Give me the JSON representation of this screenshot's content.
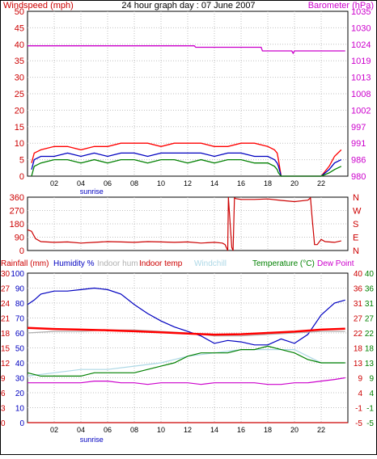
{
  "chart_data": [
    {
      "type": "line",
      "title": "24 hour graph day : 07 June 2007",
      "ylabel": "Windspeed (mph)",
      "y2label": "Barometer (hPa)",
      "ylim": [
        0,
        50
      ],
      "yticks": [
        "0",
        "5",
        "10",
        "15",
        "20",
        "25",
        "30",
        "35",
        "40",
        "45",
        "50"
      ],
      "y2lim": [
        980,
        1035
      ],
      "y2ticks": [
        "980",
        "986",
        "991",
        "997",
        "1002",
        "1008",
        "1013",
        "1019",
        "1024",
        "1030",
        "1035"
      ],
      "xlim": [
        0,
        24
      ],
      "xticks": [
        "02",
        "04",
        "06",
        "08",
        "10",
        "12",
        "14",
        "16",
        "18",
        "20",
        "22"
      ],
      "x_annotation": "sunrise",
      "x_annotation_at": 4.8,
      "grid": true,
      "colors": {
        "gust": "#ff0000",
        "average": "#0000c0",
        "wind": "#008000",
        "barometer": "#cc00cc",
        "text_left": "#cc0000",
        "text_right": "#cc00cc"
      },
      "series": [
        {
          "name": "",
          "axis": "left",
          "color": "#ff0000",
          "x": [
            0.3,
            0.5,
            1.0,
            2.0,
            3.0,
            4.0,
            5.0,
            6.0,
            7.0,
            8.0,
            9.0,
            10.0,
            11.0,
            12.0,
            13.0,
            14.0,
            15.0,
            16.0,
            17.0,
            18.0,
            18.5,
            18.7,
            18.8,
            19.0,
            20.0,
            21.0,
            22.0,
            22.6,
            23.0,
            23.5
          ],
          "y": [
            4,
            7,
            8,
            9,
            9,
            8,
            9,
            9,
            10,
            10,
            10,
            9,
            10,
            10,
            10,
            9,
            9,
            10,
            10,
            9,
            8,
            7,
            5,
            0,
            0,
            0,
            0,
            3,
            6,
            8
          ]
        },
        {
          "name": "",
          "axis": "left",
          "color": "#0000c0",
          "x": [
            0.3,
            0.5,
            1.0,
            2.0,
            3.0,
            4.0,
            5.0,
            6.0,
            7.0,
            8.0,
            9.0,
            10.0,
            11.0,
            12.0,
            13.0,
            14.0,
            15.0,
            16.0,
            17.0,
            18.0,
            18.5,
            18.7,
            18.8,
            19.0,
            20.0,
            21.0,
            22.0,
            22.6,
            23.0,
            23.5
          ],
          "y": [
            2,
            5,
            6,
            6,
            7,
            6,
            7,
            6,
            7,
            7,
            6,
            7,
            7,
            7,
            7,
            6,
            7,
            7,
            6,
            6,
            5,
            4,
            3,
            0,
            0,
            0,
            0,
            2,
            4,
            5
          ]
        },
        {
          "name": "",
          "axis": "left",
          "color": "#008000",
          "x": [
            0.3,
            0.5,
            1.0,
            2.0,
            3.0,
            4.0,
            5.0,
            6.0,
            7.0,
            8.0,
            9.0,
            10.0,
            11.0,
            12.0,
            13.0,
            14.0,
            15.0,
            16.0,
            17.0,
            18.0,
            18.5,
            18.7,
            18.8,
            19.0,
            20.0,
            21.0,
            22.0,
            22.6,
            23.0,
            23.5
          ],
          "y": [
            0,
            3,
            4,
            5,
            5,
            4,
            5,
            4,
            5,
            5,
            4,
            5,
            5,
            4,
            5,
            4,
            5,
            5,
            4,
            4,
            3,
            2,
            1,
            0,
            0,
            0,
            0,
            1,
            2,
            3
          ]
        },
        {
          "name": "",
          "axis": "right",
          "color": "#cc00cc",
          "x": [
            0.0,
            12.5,
            12.6,
            17.5,
            17.6,
            19.8,
            19.9,
            20.0,
            20.1,
            23.8
          ],
          "y": [
            1023.5,
            1023.5,
            1023.0,
            1023.0,
            1021.8,
            1021.8,
            1021.0,
            1021.8,
            1021.8,
            1021.8
          ]
        }
      ]
    },
    {
      "type": "line",
      "ylabel": "",
      "ylim": [
        0,
        360
      ],
      "yticks": [
        "0",
        "90",
        "180",
        "270",
        "360"
      ],
      "y2ticks": [
        "N",
        "E",
        "S",
        "W",
        "N"
      ],
      "xlim": [
        0,
        24
      ],
      "grid": true,
      "colors": {
        "direction": "#cc0000",
        "text_left": "#cc0000"
      },
      "series": [
        {
          "name": "",
          "color": "#cc0000",
          "x": [
            0.0,
            0.3,
            0.6,
            1.0,
            2.0,
            3.0,
            4.0,
            5.0,
            6.0,
            7.0,
            8.0,
            9.0,
            10.0,
            11.0,
            12.0,
            13.0,
            14.0,
            14.6,
            14.8,
            15.0,
            15.05,
            15.3,
            15.4,
            15.5,
            15.6,
            16.0,
            17.0,
            18.0,
            19.0,
            20.0,
            21.0,
            21.2,
            21.3,
            21.5,
            21.7,
            22.0,
            22.3,
            23.0,
            23.5
          ],
          "y": [
            140,
            130,
            80,
            60,
            55,
            58,
            50,
            55,
            60,
            58,
            55,
            60,
            58,
            55,
            58,
            50,
            55,
            50,
            40,
            0,
            360,
            20,
            0,
            355,
            350,
            345,
            345,
            348,
            338,
            330,
            340,
            355,
            240,
            40,
            40,
            75,
            60,
            55,
            65
          ]
        }
      ]
    },
    {
      "type": "line",
      "left_labels": [
        "Rainfall (mm)",
        "Humidity %",
        "Indoor hum",
        "Indoor temp",
        "Windchill"
      ],
      "right_labels": [
        "Temperature (°C)",
        "Dew Point"
      ],
      "ylim": [
        0,
        100
      ],
      "yticks_left1": [
        "0",
        "3",
        "6",
        "9",
        "12",
        "15",
        "18",
        "21",
        "24",
        "27",
        "30"
      ],
      "yticks_left2": [
        "0",
        "10",
        "20",
        "30",
        "40",
        "50",
        "60",
        "70",
        "80",
        "90",
        "100"
      ],
      "yticks_right1": [
        "-5",
        "-1",
        "4",
        "9",
        "13",
        "18",
        "22",
        "27",
        "31",
        "36",
        "40"
      ],
      "yticks_right2": [
        "-5",
        "-1",
        "4",
        "9",
        "13",
        "18",
        "22",
        "27",
        "31",
        "36",
        "40"
      ],
      "y2lim": [
        -5,
        40
      ],
      "xlim": [
        0,
        24
      ],
      "xticks": [
        "02",
        "04",
        "06",
        "08",
        "10",
        "12",
        "14",
        "16",
        "18",
        "20",
        "22"
      ],
      "x_annotation": "sunrise",
      "x_annotation_at": 4.8,
      "grid": true,
      "colors": {
        "rainfall": "#cc0000",
        "humidity": "#0000c0",
        "indoor_hum": "#b0b0b0",
        "indoor_temp": "#ff0000",
        "windchill": "#add8e6",
        "temperature": "#008000",
        "dew_point": "#cc00cc"
      },
      "series": [
        {
          "name": "Rainfall (mm)",
          "axis": "left",
          "color": "#cc0000",
          "x": [
            0,
            24
          ],
          "y": [
            0,
            0
          ]
        },
        {
          "name": "Humidity %",
          "axis": "left",
          "color": "#0000c0",
          "x": [
            0.0,
            0.5,
            1.0,
            2.0,
            3.0,
            4.0,
            5.0,
            6.0,
            7.0,
            8.0,
            9.0,
            10.0,
            11.0,
            12.0,
            13.0,
            14.0,
            15.0,
            16.0,
            17.0,
            18.0,
            19.0,
            20.0,
            21.0,
            22.0,
            23.0,
            23.8
          ],
          "y": [
            79,
            82,
            86,
            88,
            88,
            89,
            90,
            89,
            86,
            79,
            73,
            68,
            64,
            61,
            58,
            53,
            55,
            54,
            52,
            52,
            56,
            53,
            59,
            72,
            80,
            82
          ]
        },
        {
          "name": "Indoor hum",
          "axis": "left",
          "color": "#b0b0b0",
          "x": [
            0,
            2,
            4,
            6,
            8,
            10,
            12,
            14,
            16,
            18,
            20,
            22,
            23.8
          ],
          "y": [
            60,
            61,
            61,
            62,
            62,
            61,
            60,
            58,
            58,
            59,
            60,
            61,
            61
          ]
        },
        {
          "name": "Indoor temp",
          "axis": "right",
          "color": "#ff0000",
          "x": [
            0,
            2,
            4,
            6,
            8,
            10,
            12,
            14,
            16,
            18,
            20,
            22,
            23.8
          ],
          "y": [
            23.5,
            23.2,
            23.0,
            22.8,
            22.5,
            22.2,
            21.8,
            21.5,
            21.6,
            22.0,
            22.4,
            23.0,
            23.3
          ]
        },
        {
          "name": "Windchill",
          "axis": "right",
          "color": "#add8e6",
          "x": [
            0,
            2,
            4,
            6,
            8,
            10,
            12,
            14,
            16,
            18,
            20,
            22,
            23.8
          ],
          "y": [
            9,
            10,
            11,
            11,
            12,
            13,
            15,
            16,
            17,
            17,
            17,
            13,
            13
          ]
        },
        {
          "name": "Temperature (°C)",
          "axis": "right",
          "color": "#008000",
          "x": [
            0,
            1,
            2,
            3,
            4,
            5,
            6,
            7,
            8,
            9,
            10,
            11,
            12,
            13,
            14,
            15,
            16,
            17,
            18,
            19,
            20,
            21,
            22,
            23,
            23.8
          ],
          "y": [
            10,
            9,
            9,
            9,
            9,
            10,
            10,
            10,
            10,
            11,
            12,
            13,
            15,
            16,
            16,
            16,
            17,
            17,
            18,
            17,
            16,
            14,
            13,
            13,
            13
          ]
        },
        {
          "name": "Dew Point",
          "axis": "right",
          "color": "#cc00cc",
          "x": [
            0,
            1,
            2,
            3,
            4,
            5,
            6,
            7,
            8,
            9,
            10,
            11,
            12,
            13,
            14,
            15,
            16,
            17,
            18,
            19,
            20,
            21,
            22,
            23,
            23.8
          ],
          "y": [
            7,
            7,
            7,
            7,
            7,
            7.5,
            7.5,
            7,
            7,
            6.5,
            7,
            7,
            7,
            6.5,
            7,
            7,
            7,
            7,
            6.5,
            6.5,
            7,
            7,
            7.5,
            8,
            8.5
          ]
        }
      ]
    }
  ]
}
